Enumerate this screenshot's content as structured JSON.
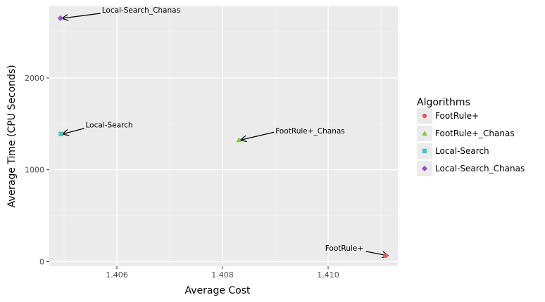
{
  "chart_data": {
    "type": "scatter",
    "title": "",
    "xlabel": "Average Cost",
    "ylabel": "Average Time (CPU Seconds)",
    "xlim": [
      1.40472,
      1.41132
    ],
    "ylim": [
      -50,
      2780
    ],
    "x_ticks": [
      1.406,
      1.408,
      1.41
    ],
    "x_tick_labels": [
      "1.406",
      "1.408",
      "1.410"
    ],
    "y_ticks": [
      0,
      1000,
      2000
    ],
    "y_tick_labels": [
      "0",
      "1000",
      "2000"
    ],
    "grid": true,
    "panel_background": "#ebebeb",
    "legend": {
      "title": "Algorithms",
      "placement": "right",
      "entries": [
        "FootRule+",
        "FootRule+_Chanas",
        "Local-Search",
        "Local-Search_Chanas"
      ]
    },
    "series": [
      {
        "name": "FootRule+",
        "color": "#e15f52",
        "shape": "circle",
        "x": [
          1.41109
        ],
        "y": [
          65
        ],
        "annotation": "FootRule+"
      },
      {
        "name": "FootRule+_Chanas",
        "color": "#7fcc3c",
        "shape": "triangle",
        "x": [
          1.40831
        ],
        "y": [
          1325
        ],
        "annotation": "FootRule+_Chanas"
      },
      {
        "name": "Local-Search",
        "color": "#3fc8cf",
        "shape": "square",
        "x": [
          1.40494
        ],
        "y": [
          1390
        ],
        "annotation": "Local-Search"
      },
      {
        "name": "Local-Search_Chanas",
        "color": "#9b53cd",
        "shape": "diamond",
        "x": [
          1.40493
        ],
        "y": [
          2650
        ],
        "annotation": "Local-Search_Chanas"
      }
    ]
  }
}
